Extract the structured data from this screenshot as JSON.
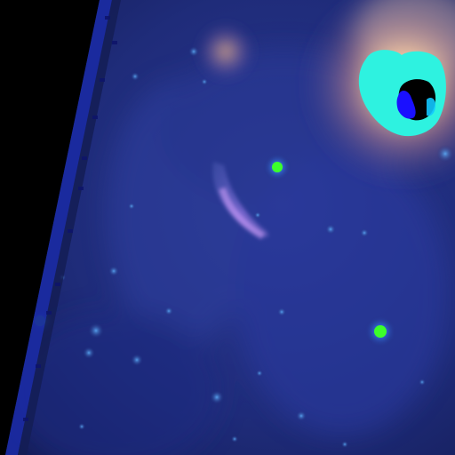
{
  "image": {
    "kind": "false-color infrared sky image",
    "colors": {
      "background_field": "#22307a",
      "field_deep": "#141d55",
      "masked_region": "#000000",
      "edge_band": "#1a2aa0",
      "nebula_glow": "#f0b889",
      "saturated_core_ring": "#2ef2e0",
      "saturated_core_center": "#000000",
      "saturated_core_blob": "#1a10ff",
      "star_halo": "#3a8cff",
      "star_core": "#3cff2a",
      "arc_feature": "#b88cff"
    }
  }
}
